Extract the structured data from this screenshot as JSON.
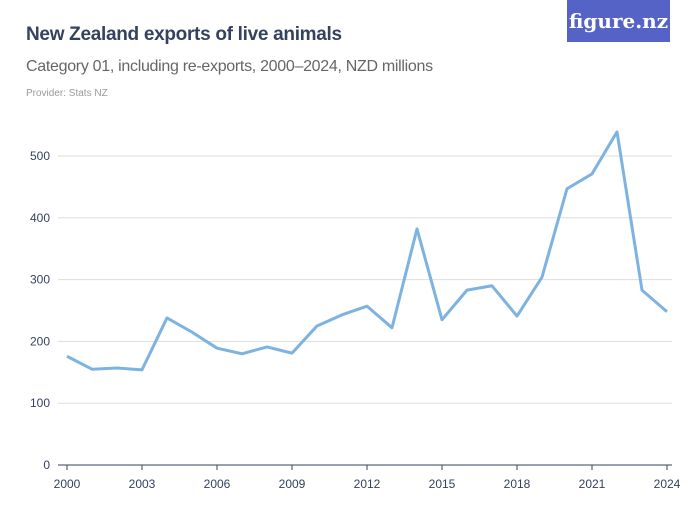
{
  "header": {
    "title": "New Zealand exports of live animals",
    "subtitle": "Category 01, including re-exports, 2000–2024, NZD millions",
    "provider": "Provider: Stats NZ",
    "logo": "figure.nz"
  },
  "colors": {
    "line": "#7eb3e0",
    "grid": "#dddddd",
    "logo_bg": "#5563c7",
    "title": "#34425f"
  },
  "chart_data": {
    "type": "line",
    "title": "New Zealand exports of live animals",
    "subtitle": "Category 01, including re-exports, 2000–2024, NZD millions",
    "xlabel": "",
    "ylabel": "",
    "x": [
      2000,
      2001,
      2002,
      2003,
      2004,
      2005,
      2006,
      2007,
      2008,
      2009,
      2010,
      2011,
      2012,
      2013,
      2014,
      2015,
      2016,
      2017,
      2018,
      2019,
      2020,
      2021,
      2022,
      2023,
      2024
    ],
    "values": [
      176,
      155,
      157,
      154,
      238,
      215,
      189,
      180,
      191,
      181,
      225,
      243,
      257,
      222,
      382,
      235,
      283,
      290,
      241,
      304,
      447,
      471,
      539,
      283,
      248
    ],
    "xlim": [
      2000,
      2024
    ],
    "ylim": [
      0,
      500
    ],
    "xticks": [
      "2000",
      "2003",
      "2006",
      "2009",
      "2012",
      "2015",
      "2018",
      "2021",
      "2024"
    ],
    "yticks": [
      "0",
      "100",
      "200",
      "300",
      "400",
      "500"
    ],
    "grid": true
  }
}
